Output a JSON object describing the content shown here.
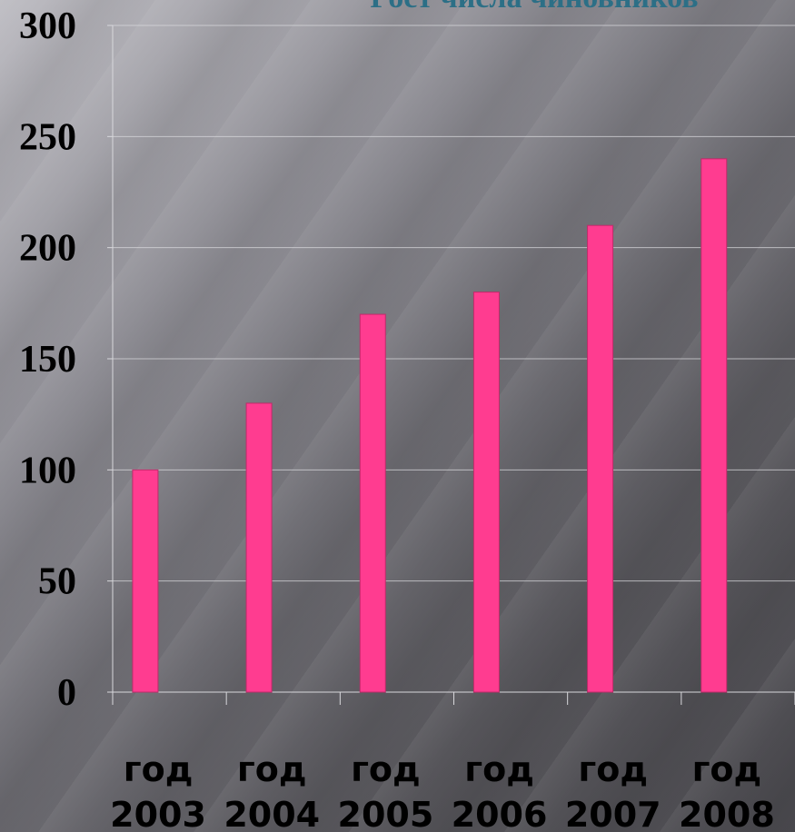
{
  "chart_data": {
    "type": "bar",
    "title": "Рост числа чиновников",
    "categories": [
      {
        "line1": "год",
        "line2": "2003"
      },
      {
        "line1": "год",
        "line2": "2004"
      },
      {
        "line1": "год",
        "line2": "2005"
      },
      {
        "line1": "год",
        "line2": "2006"
      },
      {
        "line1": "год",
        "line2": "2007"
      },
      {
        "line1": "год",
        "line2": "2008"
      }
    ],
    "values": [
      100,
      130,
      170,
      180,
      210,
      240
    ],
    "ylim": [
      0,
      300
    ],
    "yticks": [
      "0",
      "50",
      "100",
      "150",
      "200",
      "250",
      "300"
    ],
    "grid": true,
    "colors": {
      "bar": "#ff3c90",
      "title": "#2c6f86"
    }
  }
}
